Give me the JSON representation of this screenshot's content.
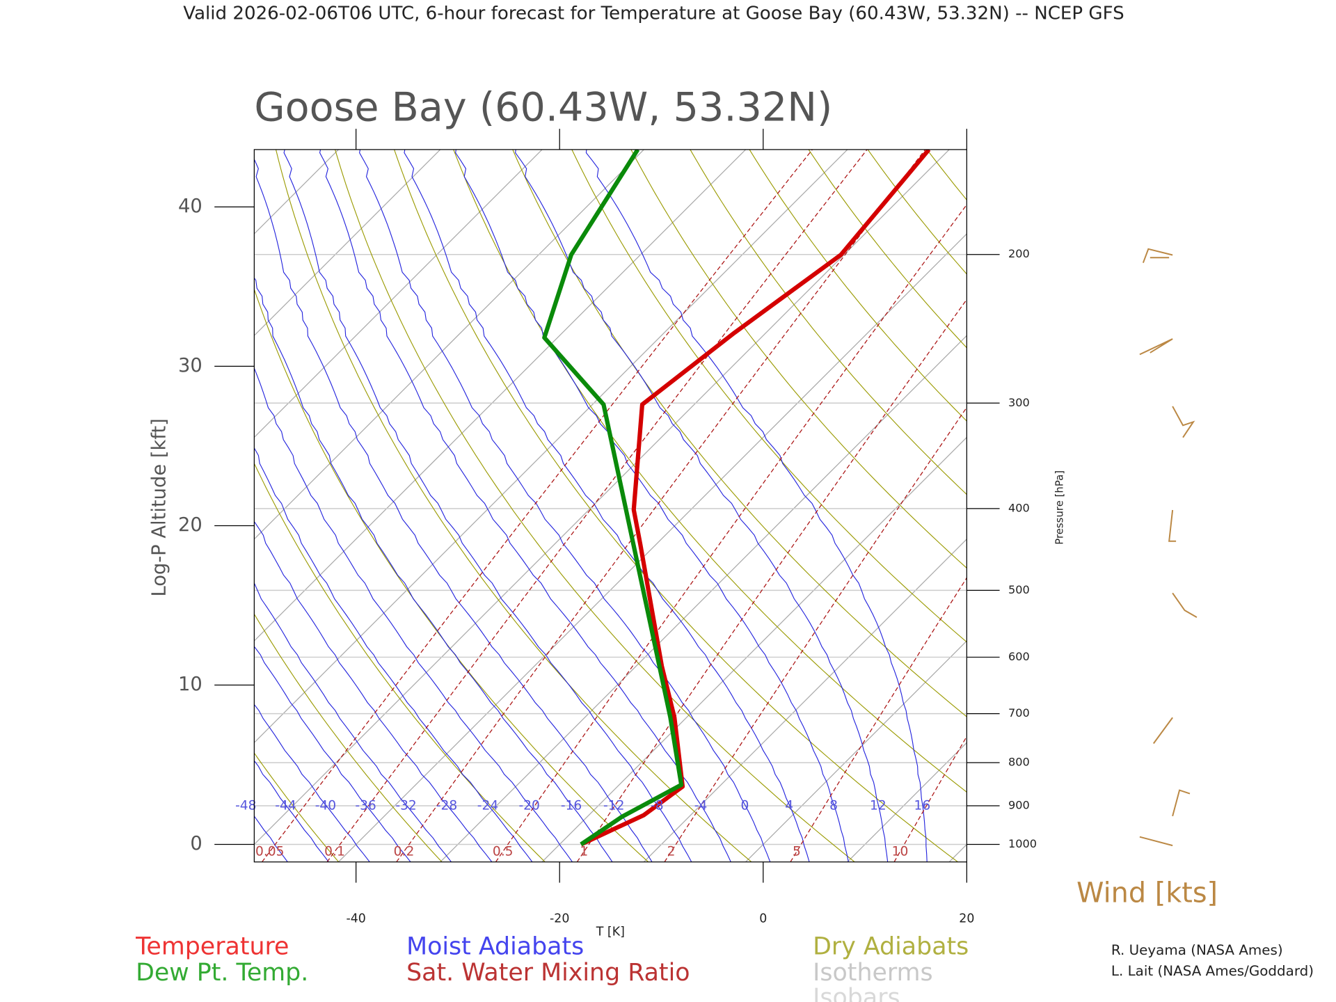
{
  "chart_data": {
    "type": "skewt",
    "title": "Valid 2026-02-06T06 UTC, 6-hour forecast for Temperature at Goose Bay (60.43W, 53.32N) -- NCEP GFS",
    "subtitle": "Goose Bay (60.43W, 53.32N)",
    "ylabel": "Log-P Altitude [kft]",
    "xlabel": "T [K]",
    "y2label": "Pressure [hPa]",
    "ylim": [
      -1.1,
      43.6
    ],
    "yticks": [
      0,
      10,
      20,
      30,
      40
    ],
    "xlim": [
      -50,
      20
    ],
    "xticks": [
      -40,
      -20,
      0,
      20
    ],
    "pressure_ticks": [
      1000,
      900,
      800,
      700,
      600,
      500,
      400,
      300,
      200
    ],
    "series": [
      {
        "name": "Temperature",
        "color": "#d40000",
        "altitude": [
          0,
          1.84,
          3.63,
          7.97,
          11.2,
          18.8,
          21.0,
          27.6,
          32.1,
          37.0,
          43.6
        ],
        "values": [
          -17.9,
          -14.6,
          -13.6,
          -21.2,
          -27.5,
          -41.5,
          -45.6,
          -55.1,
          -53.1,
          -50.3,
          -52.0
        ]
      },
      {
        "name": "Dew Pt. Temp.",
        "color": "#0a8a0a",
        "altitude": [
          0,
          1.73,
          3.74,
          7.97,
          27.6,
          31.8,
          37.0,
          43.6
        ],
        "values": [
          -17.9,
          -16.6,
          -13.9,
          -21.6,
          -58.9,
          -71.3,
          -76.8,
          -80.6
        ]
      }
    ],
    "moist_adiabats": {
      "name": "Moist Adiabats",
      "color": "#2222dd",
      "labels": [
        -48,
        -44,
        -40,
        -36,
        -32,
        -28,
        -24,
        -20,
        -16,
        -12,
        -8,
        -4,
        0,
        4,
        8,
        12,
        16
      ]
    },
    "mixing_ratio": {
      "name": "Sat. Water Mixing Ratio",
      "color": "#aa1111",
      "labels": [
        0.05,
        0.1,
        0.2,
        0.5,
        1,
        2,
        5,
        10
      ]
    },
    "dry_adiabats": {
      "name": "Dry Adiabats",
      "color": "#9a9a00"
    },
    "isotherms": {
      "name": "Isotherms",
      "color": "#aaaaaa"
    },
    "isobars": {
      "name": "Isobars",
      "color": "#cccccc"
    },
    "wind_title": "Wind [kts]",
    "credits": [
      "R. Ueyama (NASA Ames)",
      "L. Lait (NASA Ames/Goddard)"
    ]
  }
}
